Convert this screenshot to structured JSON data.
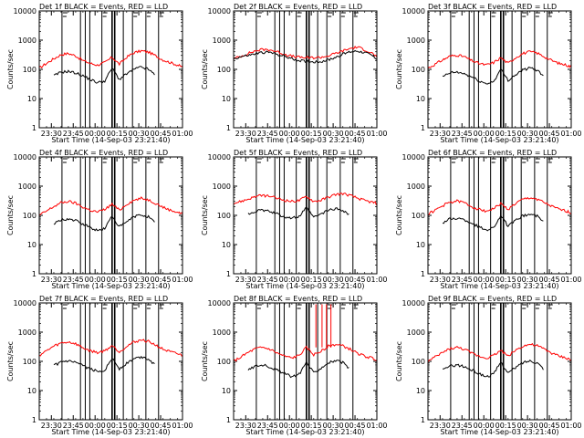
{
  "figure": {
    "panels": [
      {
        "title": "Det 1f BLACK = Events, RED = LLD",
        "ylabel": "Counts/sec",
        "xlabel": "Start Time (14-Sep-03 23:21:40)"
      },
      {
        "title": "Det 2f BLACK = Events, RED = LLD",
        "ylabel": "Counts/sec",
        "xlabel": "Start Time (14-Sep-03 23:21:40)"
      },
      {
        "title": "Det 3f BLACK = Events, RED = LLD",
        "ylabel": "Counts/sec",
        "xlabel": "Start Time (14-Sep-03 23:21:40)"
      },
      {
        "title": "Det 4f BLACK = Events, RED = LLD",
        "ylabel": "Counts/sec",
        "xlabel": "Start Time (14-Sep-03 23:21:40)"
      },
      {
        "title": "Det 5f BLACK = Events, RED = LLD",
        "ylabel": "Counts/sec",
        "xlabel": "Start Time (14-Sep-03 23:21:40)"
      },
      {
        "title": "Det 6f BLACK = Events, RED = LLD",
        "ylabel": "Counts/sec",
        "xlabel": "Start Time (14-Sep-03 23:21:40)"
      },
      {
        "title": "Det 7f BLACK = Events, RED = LLD",
        "ylabel": "Counts/sec",
        "xlabel": "Start Time (14-Sep-03 23:21:40)"
      },
      {
        "title": "Det 8f BLACK = Events, RED = LLD",
        "ylabel": "Counts/sec",
        "xlabel": "Start Time (14-Sep-03 23:21:40)"
      },
      {
        "title": "Det 9f BLACK = Events, RED = LLD",
        "ylabel": "Counts/sec",
        "xlabel": "Start Time (14-Sep-03 23:21:40)"
      }
    ]
  },
  "chart_data": {
    "type": "line",
    "layout": "3x3 grid",
    "x_unit": "minutes after 23:21:40",
    "xlim": [
      0,
      98.33
    ],
    "x_ticks": [
      8.33,
      23.33,
      38.33,
      53.33,
      68.33,
      83.33,
      98.33
    ],
    "x_tick_labels": [
      "23:30",
      "23:45",
      "00:00",
      "00:15",
      "00:30",
      "00:45",
      "01:00"
    ],
    "yscale": "log",
    "ylim": [
      1,
      10000
    ],
    "y_ticks": [
      1,
      10,
      100,
      1000,
      10000
    ],
    "y_tick_labels": [
      "1",
      "10",
      "100",
      "1000",
      "10000"
    ],
    "colors": {
      "events": "#000000",
      "lld": "#ff0000"
    },
    "series_x": [
      0,
      5,
      10,
      15,
      20,
      25,
      30,
      35,
      40,
      45,
      50,
      55,
      60,
      65,
      70,
      75,
      80,
      85,
      90,
      95,
      98.33
    ],
    "panels": [
      {
        "name": "Det 1f",
        "lld": [
          110,
          160,
          230,
          320,
          350,
          290,
          200,
          160,
          140,
          170,
          260,
          150,
          260,
          370,
          430,
          390,
          290,
          210,
          170,
          140,
          120
        ],
        "events": [
          null,
          null,
          60,
          80,
          85,
          75,
          60,
          45,
          35,
          40,
          110,
          45,
          70,
          100,
          120,
          100,
          60,
          null,
          null,
          null,
          null
        ],
        "vlines": [
          15.6,
          28.3,
          31.6,
          34.7,
          43.0,
          50.0,
          51.8,
          57.7,
          64.0,
          73.2,
          81.9
        ]
      },
      {
        "name": "Det 2f",
        "lld": [
          230,
          280,
          350,
          430,
          480,
          470,
          400,
          330,
          280,
          260,
          250,
          250,
          260,
          290,
          350,
          430,
          520,
          580,
          470,
          360,
          260
        ],
        "events": [
          230,
          270,
          300,
          340,
          380,
          380,
          330,
          280,
          230,
          200,
          190,
          180,
          185,
          210,
          260,
          330,
          400,
          430,
          380,
          300,
          230
        ],
        "vlines": [
          15.6,
          28.3,
          31.6,
          34.7,
          43.0,
          50.0,
          51.8,
          57.7,
          64.0,
          73.2,
          81.9
        ]
      },
      {
        "name": "Det 3f",
        "lld": [
          110,
          150,
          210,
          280,
          310,
          270,
          200,
          160,
          140,
          170,
          250,
          160,
          250,
          350,
          400,
          360,
          270,
          200,
          160,
          140,
          120
        ],
        "events": [
          null,
          null,
          55,
          75,
          80,
          70,
          55,
          40,
          32,
          38,
          100,
          42,
          65,
          95,
          110,
          95,
          55,
          null,
          null,
          null,
          null
        ],
        "vlines": [
          15.6,
          28.3,
          31.6,
          34.7,
          43.0,
          50.0,
          51.8,
          57.7,
          64.0,
          73.2,
          81.9
        ]
      },
      {
        "name": "Det 4f",
        "lld": [
          100,
          140,
          200,
          270,
          300,
          260,
          190,
          150,
          130,
          160,
          240,
          150,
          240,
          330,
          380,
          340,
          260,
          190,
          150,
          130,
          110
        ],
        "events": [
          null,
          null,
          50,
          70,
          75,
          65,
          50,
          38,
          30,
          36,
          95,
          40,
          60,
          90,
          105,
          90,
          52,
          null,
          null,
          null,
          null
        ],
        "vlines": [
          15.6,
          28.3,
          31.6,
          34.7,
          43.0,
          50.0,
          51.8,
          57.7,
          64.0,
          73.2,
          81.9
        ]
      },
      {
        "name": "Det 5f",
        "lld": [
          260,
          300,
          360,
          440,
          480,
          450,
          380,
          330,
          300,
          320,
          450,
          300,
          330,
          420,
          520,
          560,
          480,
          390,
          320,
          280,
          260
        ],
        "events": [
          null,
          null,
          110,
          140,
          150,
          135,
          110,
          90,
          80,
          90,
          180,
          85,
          110,
          150,
          170,
          150,
          100,
          null,
          null,
          null,
          null
        ],
        "vlines": [
          15.6,
          28.3,
          31.6,
          34.7,
          43.0,
          50.0,
          51.8,
          57.7,
          64.0,
          73.2,
          81.9
        ]
      },
      {
        "name": "Det 6f",
        "lld": [
          110,
          150,
          210,
          280,
          310,
          270,
          200,
          160,
          140,
          170,
          250,
          160,
          250,
          350,
          400,
          360,
          270,
          200,
          160,
          140,
          120
        ],
        "events": [
          null,
          null,
          55,
          75,
          80,
          70,
          55,
          40,
          32,
          38,
          100,
          42,
          65,
          95,
          110,
          95,
          55,
          null,
          null,
          null,
          null
        ],
        "vlines": [
          15.6,
          28.3,
          31.6,
          34.7,
          43.0,
          50.0,
          51.8,
          57.7,
          64.0,
          73.2,
          81.9
        ]
      },
      {
        "name": "Det 7f",
        "lld": [
          160,
          230,
          330,
          420,
          460,
          400,
          290,
          230,
          200,
          230,
          350,
          210,
          330,
          460,
          540,
          480,
          360,
          260,
          210,
          180,
          160
        ],
        "events": [
          null,
          null,
          70,
          95,
          100,
          90,
          70,
          55,
          45,
          50,
          130,
          55,
          85,
          120,
          140,
          120,
          70,
          null,
          null,
          null,
          null
        ],
        "vlines": [
          15.6,
          28.3,
          31.6,
          34.7,
          43.0,
          50.0,
          51.8,
          57.7,
          64.0,
          73.2,
          81.9
        ]
      },
      {
        "name": "Det 8f",
        "lld": [
          100,
          140,
          200,
          270,
          300,
          260,
          190,
          150,
          130,
          160,
          300,
          170,
          220,
          330,
          380,
          340,
          260,
          190,
          150,
          130,
          110
        ],
        "events": [
          null,
          null,
          50,
          70,
          75,
          65,
          50,
          38,
          30,
          36,
          95,
          40,
          60,
          90,
          105,
          90,
          52,
          null,
          null,
          null,
          null
        ],
        "spikes": [
          56.5,
          60.7,
          63.7,
          66.8
        ],
        "vlines": [
          15.6,
          28.3,
          31.6,
          34.7,
          43.0,
          50.0,
          51.8,
          57.7,
          64.0,
          73.2,
          81.9
        ]
      },
      {
        "name": "Det 9f",
        "lld": [
          100,
          140,
          200,
          270,
          300,
          260,
          190,
          150,
          130,
          160,
          240,
          150,
          240,
          330,
          380,
          340,
          260,
          190,
          150,
          130,
          110
        ],
        "events": [
          null,
          null,
          50,
          70,
          75,
          65,
          50,
          38,
          30,
          36,
          95,
          40,
          60,
          90,
          105,
          90,
          52,
          null,
          null,
          null,
          null
        ],
        "vlines": [
          15.6,
          28.3,
          31.6,
          34.7,
          43.0,
          50.0,
          51.8,
          57.7,
          64.0,
          73.2,
          81.9
        ]
      }
    ]
  }
}
